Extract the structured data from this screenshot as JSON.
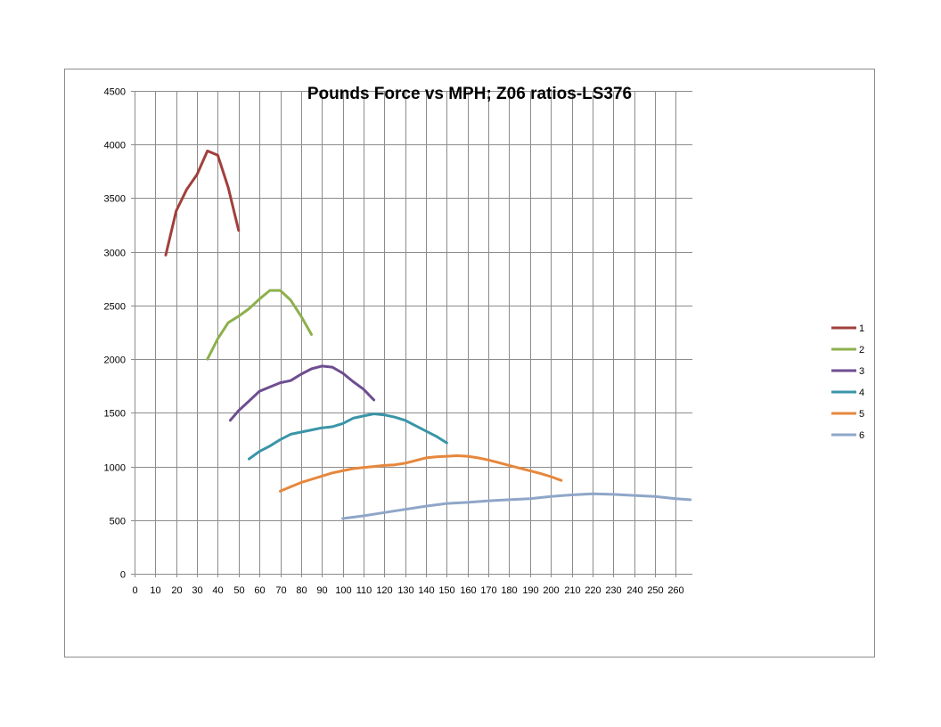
{
  "chart_data": {
    "type": "line",
    "title": "Pounds Force vs MPH; Z06 ratios-LS376",
    "xlabel": "",
    "ylabel": "",
    "xlim": [
      0,
      268
    ],
    "ylim": [
      0,
      4500
    ],
    "x_ticks": [
      "0",
      "10",
      "20",
      "30",
      "40",
      "50",
      "60",
      "70",
      "80",
      "90",
      "100",
      "110",
      "120",
      "130",
      "140",
      "150",
      "160",
      "170",
      "180",
      "190",
      "200",
      "210",
      "220",
      "230",
      "240",
      "250",
      "260"
    ],
    "y_ticks": [
      "0",
      "500",
      "1000",
      "1500",
      "2000",
      "2500",
      "3000",
      "3500",
      "4000",
      "4500"
    ],
    "grid": true,
    "legend_position": "right",
    "series": [
      {
        "name": "1",
        "color": "#A0403C",
        "points": [
          [
            15,
            2970
          ],
          [
            20,
            3380
          ],
          [
            25,
            3580
          ],
          [
            30,
            3720
          ],
          [
            35,
            3940
          ],
          [
            40,
            3900
          ],
          [
            45,
            3600
          ],
          [
            50,
            3200
          ]
        ]
      },
      {
        "name": "2",
        "color": "#8DB04C",
        "points": [
          [
            35,
            2000
          ],
          [
            40,
            2190
          ],
          [
            45,
            2340
          ],
          [
            50,
            2400
          ],
          [
            55,
            2470
          ],
          [
            60,
            2560
          ],
          [
            65,
            2640
          ],
          [
            70,
            2640
          ],
          [
            75,
            2550
          ],
          [
            80,
            2400
          ],
          [
            85,
            2230
          ]
        ]
      },
      {
        "name": "3",
        "color": "#6E4E90",
        "points": [
          [
            46,
            1430
          ],
          [
            50,
            1520
          ],
          [
            55,
            1610
          ],
          [
            60,
            1700
          ],
          [
            65,
            1740
          ],
          [
            70,
            1780
          ],
          [
            75,
            1800
          ],
          [
            80,
            1860
          ],
          [
            85,
            1910
          ],
          [
            90,
            1935
          ],
          [
            95,
            1925
          ],
          [
            100,
            1870
          ],
          [
            105,
            1790
          ],
          [
            110,
            1720
          ],
          [
            115,
            1620
          ]
        ]
      },
      {
        "name": "4",
        "color": "#3A95A8",
        "points": [
          [
            55,
            1070
          ],
          [
            60,
            1140
          ],
          [
            65,
            1190
          ],
          [
            70,
            1250
          ],
          [
            75,
            1300
          ],
          [
            80,
            1320
          ],
          [
            85,
            1340
          ],
          [
            90,
            1360
          ],
          [
            95,
            1370
          ],
          [
            100,
            1400
          ],
          [
            105,
            1450
          ],
          [
            110,
            1470
          ],
          [
            115,
            1490
          ],
          [
            120,
            1480
          ],
          [
            125,
            1460
          ],
          [
            130,
            1430
          ],
          [
            135,
            1380
          ],
          [
            140,
            1330
          ],
          [
            145,
            1280
          ],
          [
            150,
            1220
          ]
        ]
      },
      {
        "name": "5",
        "color": "#E6873C",
        "points": [
          [
            70,
            770
          ],
          [
            75,
            810
          ],
          [
            80,
            850
          ],
          [
            85,
            880
          ],
          [
            90,
            910
          ],
          [
            95,
            940
          ],
          [
            100,
            960
          ],
          [
            105,
            980
          ],
          [
            110,
            990
          ],
          [
            115,
            1000
          ],
          [
            120,
            1010
          ],
          [
            125,
            1015
          ],
          [
            130,
            1030
          ],
          [
            135,
            1055
          ],
          [
            140,
            1080
          ],
          [
            145,
            1090
          ],
          [
            150,
            1095
          ],
          [
            155,
            1100
          ],
          [
            160,
            1095
          ],
          [
            165,
            1080
          ],
          [
            170,
            1060
          ],
          [
            175,
            1035
          ],
          [
            180,
            1010
          ],
          [
            185,
            985
          ],
          [
            190,
            960
          ],
          [
            195,
            935
          ],
          [
            200,
            905
          ],
          [
            205,
            870
          ]
        ]
      },
      {
        "name": "6",
        "color": "#8FA6C8",
        "points": [
          [
            100,
            515
          ],
          [
            110,
            540
          ],
          [
            120,
            570
          ],
          [
            130,
            600
          ],
          [
            140,
            630
          ],
          [
            150,
            655
          ],
          [
            160,
            665
          ],
          [
            170,
            680
          ],
          [
            180,
            690
          ],
          [
            190,
            700
          ],
          [
            200,
            720
          ],
          [
            210,
            735
          ],
          [
            220,
            745
          ],
          [
            230,
            740
          ],
          [
            240,
            730
          ],
          [
            250,
            720
          ],
          [
            260,
            700
          ],
          [
            267,
            690
          ]
        ]
      }
    ]
  }
}
